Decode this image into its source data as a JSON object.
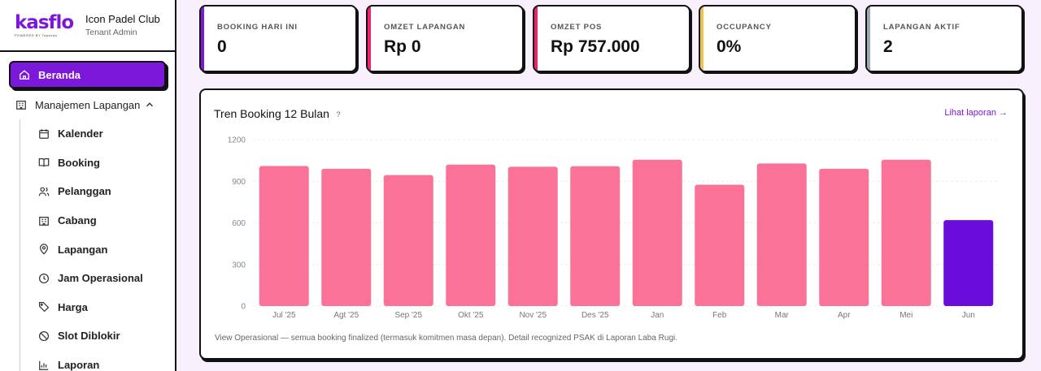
{
  "brand": {
    "logo": "kasflo",
    "logo_sub": "POWERED BY Tapsoda",
    "club_name": "Icon Padel Club",
    "role": "Tenant Admin"
  },
  "sidebar": {
    "active": {
      "label": "Beranda",
      "icon": "home-icon"
    },
    "group": {
      "label": "Manajemen Lapangan",
      "icon": "building-icon"
    },
    "items": [
      {
        "label": "Kalender",
        "icon": "calendar-icon"
      },
      {
        "label": "Booking",
        "icon": "book-icon"
      },
      {
        "label": "Pelanggan",
        "icon": "users-icon"
      },
      {
        "label": "Cabang",
        "icon": "building-icon"
      },
      {
        "label": "Lapangan",
        "icon": "map-pin-icon"
      },
      {
        "label": "Jam Operasional",
        "icon": "clock-icon"
      },
      {
        "label": "Harga",
        "icon": "tag-icon"
      },
      {
        "label": "Slot Diblokir",
        "icon": "ban-icon"
      },
      {
        "label": "Laporan",
        "icon": "chart-icon"
      }
    ]
  },
  "stats": [
    {
      "label": "BOOKING HARI INI",
      "value": "0",
      "color": "#7b18d9"
    },
    {
      "label": "OMZET LAPANGAN",
      "value": "Rp 0",
      "color": "#f0206f"
    },
    {
      "label": "OMZET POS",
      "value": "Rp 757.000",
      "color": "#f0206f"
    },
    {
      "label": "OCCUPANCY",
      "value": "0%",
      "color": "#ecc24a"
    },
    {
      "label": "LAPANGAN AKTIF",
      "value": "2",
      "color": "#9aa7b8"
    }
  ],
  "panel": {
    "title": "Tren Booking 12 Bulan",
    "help": "?",
    "link": "Lihat laporan →",
    "footnote": "View Operasional — semua booking finalized (termasuk komitmen masa depan). Detail recognized PSAK di Laporan Laba Rugi."
  },
  "chart_data": {
    "type": "bar",
    "categories": [
      "Jul '25",
      "Agt '25",
      "Sep '25",
      "Okt '25",
      "Nov '25",
      "Des '25",
      "Jan",
      "Feb",
      "Mar",
      "Apr",
      "Mei",
      "Jun"
    ],
    "values": [
      1010,
      990,
      945,
      1020,
      1005,
      1008,
      1055,
      875,
      1028,
      990,
      1055,
      620
    ],
    "highlight_index": 11,
    "bar_color": "#fb7299",
    "highlight_color": "#6a0ddb",
    "yticks": [
      0,
      300,
      600,
      900,
      1200
    ],
    "ylim": [
      0,
      1200
    ],
    "grid": true
  }
}
